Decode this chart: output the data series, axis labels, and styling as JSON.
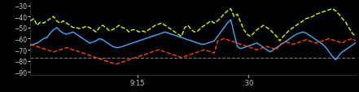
{
  "background_color": "#000000",
  "axis_bg_color": "#000000",
  "text_color": "#cccccc",
  "spine_color": "#444444",
  "ylim": [
    -93,
    -27
  ],
  "yticks": [
    -90,
    -80,
    -70,
    -60,
    -50,
    -40,
    -30
  ],
  "xtick_labels": [
    "9:15",
    ":30"
  ],
  "xtick_positions": [
    0.33,
    0.67
  ],
  "dashed_line_y": -77,
  "dashed_line_color": "#777777",
  "line_yellow": {
    "color": "#ccff00",
    "style": "--",
    "linewidth": 1.0,
    "values": [
      -44,
      -42,
      -48,
      -45,
      -46,
      -44,
      -42,
      -40,
      -44,
      -46,
      -44,
      -46,
      -48,
      -50,
      -50,
      -51,
      -50,
      -49,
      -50,
      -52,
      -54,
      -50,
      -48,
      -50,
      -53,
      -52,
      -50,
      -48,
      -50,
      -51,
      -54,
      -52,
      -52,
      -54,
      -53,
      -54,
      -52,
      -50,
      -48,
      -47,
      -46,
      -48,
      -50,
      -52,
      -54,
      -56,
      -58,
      -50,
      -48,
      -52,
      -54,
      -53,
      -50,
      -48,
      -46,
      -44,
      -46,
      -44,
      -41,
      -38,
      -35,
      -33,
      -40,
      -38,
      -45,
      -52,
      -56,
      -58,
      -55,
      -52,
      -50,
      -48,
      -50,
      -52,
      -55,
      -58,
      -62,
      -58,
      -55,
      -52,
      -50,
      -48,
      -46,
      -44,
      -42,
      -41,
      -40,
      -38,
      -37,
      -36,
      -35,
      -34,
      -33,
      -35,
      -38,
      -42,
      -45,
      -50,
      -55,
      -58
    ]
  },
  "line_blue": {
    "color": "#44aaff",
    "style": "-",
    "linewidth": 1.0,
    "values": [
      -66,
      -65,
      -64,
      -62,
      -60,
      -59,
      -55,
      -52,
      -50,
      -53,
      -55,
      -56,
      -55,
      -54,
      -56,
      -58,
      -60,
      -62,
      -64,
      -63,
      -62,
      -60,
      -61,
      -63,
      -65,
      -67,
      -68,
      -68,
      -67,
      -66,
      -65,
      -64,
      -63,
      -62,
      -61,
      -60,
      -59,
      -58,
      -57,
      -56,
      -55,
      -54,
      -55,
      -56,
      -57,
      -58,
      -59,
      -60,
      -61,
      -62,
      -63,
      -64,
      -65,
      -65,
      -64,
      -63,
      -62,
      -58,
      -54,
      -50,
      -46,
      -43,
      -55,
      -67,
      -69,
      -68,
      -67,
      -66,
      -65,
      -64,
      -66,
      -68,
      -70,
      -72,
      -70,
      -68,
      -66,
      -64,
      -62,
      -60,
      -58,
      -56,
      -55,
      -54,
      -55,
      -57,
      -59,
      -61,
      -63,
      -65,
      -68,
      -72,
      -76,
      -79,
      -75,
      -72,
      -70,
      -68,
      -66,
      -64
    ]
  },
  "line_red": {
    "color": "#ff4400",
    "style": "--",
    "linewidth": 1.0,
    "values": [
      -65,
      -66,
      -67,
      -68,
      -69,
      -70,
      -71,
      -72,
      -71,
      -70,
      -69,
      -68,
      -69,
      -70,
      -71,
      -72,
      -73,
      -74,
      -75,
      -76,
      -77,
      -78,
      -79,
      -80,
      -81,
      -82,
      -83,
      -82,
      -81,
      -80,
      -79,
      -78,
      -77,
      -76,
      -75,
      -74,
      -73,
      -72,
      -71,
      -70,
      -71,
      -72,
      -73,
      -74,
      -75,
      -76,
      -77,
      -76,
      -75,
      -74,
      -73,
      -72,
      -71,
      -70,
      -71,
      -72,
      -73,
      -62,
      -61,
      -60,
      -61,
      -62,
      -63,
      -64,
      -65,
      -66,
      -67,
      -68,
      -69,
      -70,
      -69,
      -68,
      -67,
      -68,
      -69,
      -70,
      -65,
      -64,
      -63,
      -64,
      -65,
      -64,
      -63,
      -62,
      -61,
      -62,
      -63,
      -64,
      -63,
      -62,
      -61,
      -60,
      -61,
      -62,
      -63,
      -64,
      -62,
      -61,
      -60,
      -62
    ]
  }
}
